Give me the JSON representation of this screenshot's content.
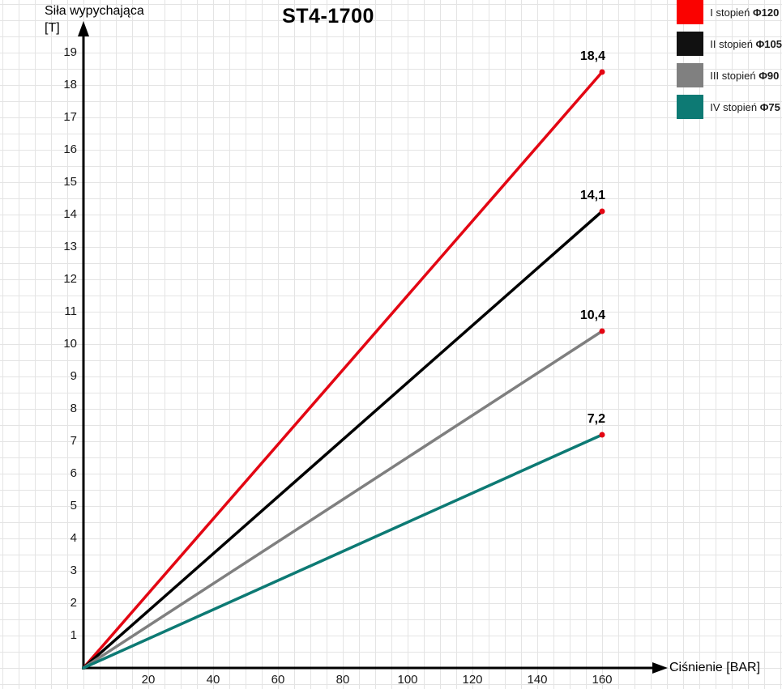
{
  "title": "ST4-1700",
  "y_axis": {
    "line1": "Siła wypychająca",
    "line2": "[T]"
  },
  "chart_data": {
    "type": "line",
    "title": "ST4-1700",
    "xlabel": "Ciśnienie [BAR]",
    "ylabel": "Siła wypychająca [T]",
    "x_ticks": [
      20,
      40,
      60,
      80,
      100,
      120,
      140,
      160
    ],
    "y_ticks": [
      1,
      2,
      3,
      4,
      5,
      6,
      7,
      8,
      9,
      10,
      11,
      12,
      13,
      14,
      15,
      16,
      17,
      18,
      19
    ],
    "xlim": [
      0,
      180
    ],
    "ylim": [
      0,
      19.8
    ],
    "grid": true,
    "legend_position": "top-right",
    "endpoint_marker_color": "#e30613",
    "series": [
      {
        "name": "I stopień Φ120",
        "stage": "I stopień",
        "phi": "Φ120",
        "color": "#e30613",
        "swatch_color": "#fa0200",
        "x": [
          0,
          160
        ],
        "values": [
          0,
          18.4
        ],
        "end_label": "18,4"
      },
      {
        "name": "II stopień Φ105",
        "stage": "II stopień",
        "phi": "Φ105",
        "color": "#000000",
        "swatch_color": "#111111",
        "x": [
          0,
          160
        ],
        "values": [
          0,
          14.1
        ],
        "end_label": "14,1"
      },
      {
        "name": "III stopień Φ90",
        "stage": "III stopień",
        "phi": "Φ90",
        "color": "#7f7f7f",
        "swatch_color": "#808080",
        "x": [
          0,
          160
        ],
        "values": [
          0,
          10.4
        ],
        "end_label": "10,4"
      },
      {
        "name": "IV stopień Φ75",
        "stage": "IV stopień",
        "phi": "Φ75",
        "color": "#0d7a74",
        "swatch_color": "#0d7a74",
        "x": [
          0,
          160
        ],
        "values": [
          0,
          7.2
        ],
        "end_label": "7,2"
      }
    ]
  }
}
